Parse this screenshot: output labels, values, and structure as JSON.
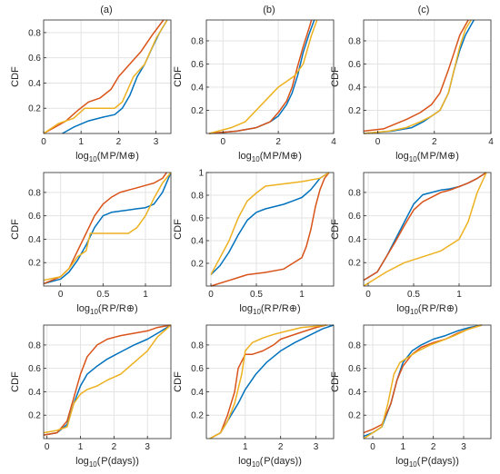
{
  "figure": {
    "column_titles": [
      "(a)",
      "(b)",
      "(c)"
    ],
    "series_colors": [
      "#0072BD",
      "#D95319",
      "#EDB120"
    ]
  },
  "chart_data": [
    {
      "type": "line",
      "panel": "a-mass",
      "ylabel": "CDF",
      "xlabel": "log10(MP/M⊕)",
      "xlim": [
        0,
        3.4
      ],
      "ylim": [
        0,
        0.9
      ],
      "grid": true,
      "xticks": [
        0,
        1,
        2,
        3
      ],
      "yticks": [
        0.2,
        0.4,
        0.6,
        0.8
      ],
      "xtick_labels": [
        "0",
        "1",
        "2",
        "3"
      ],
      "ytick_labels": [
        "0.2",
        "0.4",
        "0.6",
        "0.8"
      ],
      "series": [
        {
          "color": "#0072BD",
          "x": [
            0.5,
            0.8,
            1.2,
            1.6,
            1.9,
            2.1,
            2.3,
            2.5,
            2.7,
            2.9,
            3.1,
            3.3
          ],
          "y": [
            0.0,
            0.05,
            0.1,
            0.13,
            0.15,
            0.2,
            0.3,
            0.45,
            0.55,
            0.68,
            0.8,
            0.9
          ]
        },
        {
          "color": "#D95319",
          "x": [
            0.0,
            0.3,
            0.6,
            0.9,
            1.2,
            1.5,
            1.8,
            2.0,
            2.3,
            2.6,
            2.9,
            3.2
          ],
          "y": [
            0.0,
            0.05,
            0.1,
            0.18,
            0.25,
            0.28,
            0.35,
            0.45,
            0.55,
            0.65,
            0.78,
            0.9
          ]
        },
        {
          "color": "#EDB120",
          "x": [
            0.0,
            0.4,
            0.8,
            1.1,
            1.5,
            1.9,
            2.1,
            2.4,
            2.7,
            3.0,
            3.3
          ],
          "y": [
            0.0,
            0.08,
            0.12,
            0.2,
            0.2,
            0.2,
            0.25,
            0.45,
            0.55,
            0.75,
            0.9
          ]
        }
      ]
    },
    {
      "type": "line",
      "panel": "b-mass",
      "ylabel": "CDF",
      "xlabel": "log10(MP/M⊕)",
      "xlim": [
        -0.6,
        4.0
      ],
      "ylim": [
        0,
        0.98
      ],
      "grid": true,
      "xticks": [
        0,
        2,
        4
      ],
      "yticks": [
        0.2,
        0.4,
        0.6,
        0.8
      ],
      "xtick_labels": [
        "0",
        "2",
        "4"
      ],
      "ytick_labels": [
        "0.2",
        "0.4",
        "0.6",
        "0.8"
      ],
      "series": [
        {
          "color": "#0072BD",
          "x": [
            -0.5,
            0.5,
            1.2,
            1.7,
            2.0,
            2.3,
            2.5,
            2.7,
            2.9,
            3.1,
            3.3
          ],
          "y": [
            0.0,
            0.02,
            0.05,
            0.1,
            0.15,
            0.25,
            0.35,
            0.5,
            0.7,
            0.85,
            0.98
          ]
        },
        {
          "color": "#D95319",
          "x": [
            -0.5,
            0.5,
            1.2,
            1.7,
            2.0,
            2.3,
            2.5,
            2.7,
            2.9,
            3.1,
            3.2
          ],
          "y": [
            0.0,
            0.02,
            0.05,
            0.1,
            0.18,
            0.28,
            0.4,
            0.58,
            0.75,
            0.9,
            0.98
          ]
        },
        {
          "color": "#EDB120",
          "x": [
            -0.5,
            0.3,
            0.8,
            1.2,
            1.6,
            2.0,
            2.3,
            2.6,
            2.9,
            3.2,
            3.4
          ],
          "y": [
            0.0,
            0.05,
            0.1,
            0.2,
            0.3,
            0.4,
            0.45,
            0.5,
            0.6,
            0.85,
            0.98
          ]
        }
      ]
    },
    {
      "type": "line",
      "panel": "c-mass",
      "ylabel": "CDF",
      "xlabel": "log10(MP/M⊕)",
      "xlim": [
        -0.5,
        4.0
      ],
      "ylim": [
        0,
        0.98
      ],
      "grid": true,
      "xticks": [
        0,
        2,
        4
      ],
      "yticks": [
        0.2,
        0.4,
        0.6,
        0.8
      ],
      "xtick_labels": [
        "0",
        "2",
        "4"
      ],
      "ytick_labels": [
        "0.2",
        "0.4",
        "0.6",
        "0.8"
      ],
      "series": [
        {
          "color": "#0072BD",
          "x": [
            -0.5,
            0.5,
            1.2,
            1.6,
            1.9,
            2.2,
            2.5,
            2.7,
            2.9,
            3.1,
            3.4
          ],
          "y": [
            0.0,
            0.02,
            0.05,
            0.1,
            0.15,
            0.2,
            0.35,
            0.55,
            0.72,
            0.85,
            0.98
          ]
        },
        {
          "color": "#D95319",
          "x": [
            -0.5,
            0.2,
            0.6,
            1.0,
            1.5,
            1.9,
            2.2,
            2.5,
            2.7,
            2.9,
            3.2
          ],
          "y": [
            0.02,
            0.04,
            0.08,
            0.12,
            0.18,
            0.25,
            0.35,
            0.55,
            0.7,
            0.85,
            0.98
          ]
        },
        {
          "color": "#EDB120",
          "x": [
            -0.5,
            0.4,
            1.0,
            1.5,
            1.9,
            2.2,
            2.5,
            2.7,
            2.9,
            3.1,
            3.3
          ],
          "y": [
            0.0,
            0.02,
            0.05,
            0.1,
            0.15,
            0.2,
            0.35,
            0.55,
            0.75,
            0.9,
            0.98
          ]
        }
      ]
    },
    {
      "type": "line",
      "panel": "a-radius",
      "ylabel": "CDF",
      "xlabel": "log10(RP/R⊕)",
      "xlim": [
        -0.2,
        1.3
      ],
      "ylim": [
        0,
        0.97
      ],
      "grid": true,
      "xticks": [
        0,
        0.5,
        1
      ],
      "yticks": [
        0.2,
        0.4,
        0.6,
        0.8
      ],
      "xtick_labels": [
        "0",
        "0.5",
        "1"
      ],
      "ytick_labels": [
        "0.2",
        "0.4",
        "0.6",
        "0.8"
      ],
      "series": [
        {
          "color": "#0072BD",
          "x": [
            -0.2,
            0.0,
            0.1,
            0.2,
            0.3,
            0.4,
            0.5,
            0.6,
            0.7,
            0.8,
            0.9,
            1.0,
            1.1,
            1.2,
            1.3
          ],
          "y": [
            0.02,
            0.06,
            0.12,
            0.22,
            0.35,
            0.5,
            0.6,
            0.63,
            0.64,
            0.65,
            0.66,
            0.67,
            0.7,
            0.8,
            0.97
          ]
        },
        {
          "color": "#D95319",
          "x": [
            -0.2,
            0.0,
            0.1,
            0.2,
            0.3,
            0.4,
            0.5,
            0.6,
            0.7,
            0.8,
            0.9,
            1.0,
            1.1,
            1.2,
            1.25
          ],
          "y": [
            0.02,
            0.08,
            0.15,
            0.3,
            0.45,
            0.6,
            0.7,
            0.76,
            0.8,
            0.82,
            0.84,
            0.86,
            0.88,
            0.92,
            0.97
          ]
        },
        {
          "color": "#EDB120",
          "x": [
            -0.2,
            0.0,
            0.1,
            0.2,
            0.3,
            0.35,
            0.6,
            0.8,
            0.9,
            1.0,
            1.1,
            1.2,
            1.3
          ],
          "y": [
            0.05,
            0.08,
            0.15,
            0.25,
            0.3,
            0.45,
            0.45,
            0.45,
            0.5,
            0.6,
            0.75,
            0.88,
            0.97
          ]
        }
      ]
    },
    {
      "type": "line",
      "panel": "b-radius",
      "ylabel": "CDF",
      "xlabel": "log10(RP/R⊕)",
      "xlim": [
        -0.05,
        1.35
      ],
      "ylim": [
        0,
        1.0
      ],
      "grid": true,
      "xticks": [
        0,
        0.5,
        1
      ],
      "yticks": [
        0.2,
        0.4,
        0.6,
        0.8,
        1.0
      ],
      "xtick_labels": [
        "0",
        "0.5",
        "1"
      ],
      "ytick_labels": [
        "0.2",
        "0.4",
        "0.6",
        "0.8",
        "1"
      ],
      "series": [
        {
          "color": "#0072BD",
          "x": [
            0.0,
            0.1,
            0.2,
            0.3,
            0.4,
            0.5,
            0.6,
            0.7,
            0.8,
            0.9,
            1.0,
            1.1,
            1.2,
            1.3
          ],
          "y": [
            0.1,
            0.18,
            0.3,
            0.45,
            0.58,
            0.65,
            0.68,
            0.7,
            0.72,
            0.75,
            0.78,
            0.85,
            0.95,
            1.0
          ]
        },
        {
          "color": "#D95319",
          "x": [
            0.0,
            0.2,
            0.4,
            0.6,
            0.8,
            0.9,
            1.0,
            1.05,
            1.1,
            1.15,
            1.2,
            1.25,
            1.3
          ],
          "y": [
            0.0,
            0.05,
            0.1,
            0.12,
            0.15,
            0.2,
            0.25,
            0.35,
            0.5,
            0.7,
            0.85,
            0.95,
            1.0
          ]
        },
        {
          "color": "#EDB120",
          "x": [
            0.0,
            0.1,
            0.2,
            0.3,
            0.4,
            0.5,
            0.6,
            0.8,
            1.0,
            1.2,
            1.3
          ],
          "y": [
            0.1,
            0.25,
            0.4,
            0.6,
            0.75,
            0.82,
            0.88,
            0.9,
            0.92,
            0.95,
            1.0
          ]
        }
      ]
    },
    {
      "type": "line",
      "panel": "c-radius",
      "ylabel": "CDF",
      "xlabel": "log10(RP/R⊕)",
      "xlim": [
        -0.05,
        1.35
      ],
      "ylim": [
        0,
        0.97
      ],
      "grid": true,
      "xticks": [
        0,
        0.5,
        1
      ],
      "yticks": [
        0.2,
        0.4,
        0.6,
        0.8
      ],
      "xtick_labels": [
        "0",
        "0.5",
        "1"
      ],
      "ytick_labels": [
        "0.2",
        "0.4",
        "0.6",
        "0.8"
      ],
      "series": [
        {
          "color": "#0072BD",
          "x": [
            -0.05,
            0.1,
            0.2,
            0.3,
            0.4,
            0.5,
            0.6,
            0.7,
            0.8,
            0.9,
            1.0,
            1.1,
            1.2,
            1.3
          ],
          "y": [
            0.05,
            0.12,
            0.25,
            0.4,
            0.55,
            0.7,
            0.78,
            0.8,
            0.82,
            0.83,
            0.85,
            0.88,
            0.92,
            0.97
          ]
        },
        {
          "color": "#D95319",
          "x": [
            -0.05,
            0.1,
            0.2,
            0.3,
            0.4,
            0.5,
            0.6,
            0.7,
            0.8,
            0.9,
            1.0,
            1.1,
            1.2,
            1.3
          ],
          "y": [
            0.05,
            0.12,
            0.25,
            0.38,
            0.52,
            0.65,
            0.72,
            0.76,
            0.8,
            0.82,
            0.85,
            0.88,
            0.92,
            0.97
          ]
        },
        {
          "color": "#EDB120",
          "x": [
            -0.05,
            0.2,
            0.4,
            0.6,
            0.8,
            0.9,
            1.0,
            1.1,
            1.2,
            1.3
          ],
          "y": [
            0.0,
            0.12,
            0.2,
            0.25,
            0.3,
            0.35,
            0.4,
            0.55,
            0.8,
            0.97
          ]
        }
      ]
    },
    {
      "type": "line",
      "panel": "a-period",
      "ylabel": "CDF",
      "xlabel": "log10(P(days))",
      "xlim": [
        -0.1,
        3.7
      ],
      "ylim": [
        0,
        0.97
      ],
      "grid": true,
      "xticks": [
        0,
        1,
        2,
        3
      ],
      "yticks": [
        0.2,
        0.4,
        0.6,
        0.8
      ],
      "xtick_labels": [
        "0",
        "1",
        "2",
        "3"
      ],
      "ytick_labels": [
        "0.2",
        "0.4",
        "0.6",
        "0.8"
      ],
      "series": [
        {
          "color": "#0072BD",
          "x": [
            -0.1,
            0.3,
            0.6,
            0.8,
            1.0,
            1.2,
            1.5,
            1.8,
            2.2,
            2.6,
            3.0,
            3.3,
            3.7
          ],
          "y": [
            0.03,
            0.05,
            0.12,
            0.3,
            0.45,
            0.55,
            0.62,
            0.68,
            0.74,
            0.8,
            0.85,
            0.9,
            0.97
          ]
        },
        {
          "color": "#D95319",
          "x": [
            -0.1,
            0.3,
            0.6,
            0.8,
            1.0,
            1.2,
            1.5,
            1.8,
            2.2,
            2.6,
            3.0,
            3.3,
            3.7
          ],
          "y": [
            0.03,
            0.05,
            0.15,
            0.35,
            0.55,
            0.7,
            0.8,
            0.85,
            0.88,
            0.9,
            0.92,
            0.95,
            0.97
          ]
        },
        {
          "color": "#EDB120",
          "x": [
            -0.1,
            0.3,
            0.6,
            0.8,
            1.0,
            1.2,
            1.5,
            1.8,
            2.2,
            2.6,
            3.0,
            3.3,
            3.7
          ],
          "y": [
            0.05,
            0.07,
            0.1,
            0.3,
            0.38,
            0.42,
            0.45,
            0.5,
            0.55,
            0.65,
            0.75,
            0.87,
            0.97
          ]
        }
      ]
    },
    {
      "type": "line",
      "panel": "b-period",
      "ylabel": "CDF",
      "xlabel": "log10(P(days))",
      "xlim": [
        -0.1,
        3.5
      ],
      "ylim": [
        0,
        0.97
      ],
      "grid": true,
      "xticks": [
        1,
        2,
        3
      ],
      "yticks": [
        0.2,
        0.4,
        0.6,
        0.8
      ],
      "xtick_labels": [
        "1",
        "2",
        "3"
      ],
      "ytick_labels": [
        "0.2",
        "0.4",
        "0.6",
        "0.8"
      ],
      "series": [
        {
          "color": "#0072BD",
          "x": [
            0.0,
            0.3,
            0.5,
            0.8,
            1.0,
            1.3,
            1.6,
            2.0,
            2.4,
            2.8,
            3.2,
            3.5
          ],
          "y": [
            0.0,
            0.05,
            0.15,
            0.3,
            0.42,
            0.55,
            0.65,
            0.75,
            0.82,
            0.88,
            0.94,
            0.97
          ]
        },
        {
          "color": "#D95319",
          "x": [
            0.0,
            0.3,
            0.5,
            0.7,
            0.8,
            1.0,
            1.2,
            1.5,
            1.8,
            2.0,
            2.5,
            3.0,
            3.3
          ],
          "y": [
            0.0,
            0.05,
            0.2,
            0.4,
            0.6,
            0.72,
            0.72,
            0.75,
            0.8,
            0.85,
            0.9,
            0.95,
            0.97
          ]
        },
        {
          "color": "#EDB120",
          "x": [
            0.0,
            0.3,
            0.5,
            0.7,
            0.9,
            1.0,
            1.2,
            1.5,
            1.8,
            2.2,
            2.6,
            3.0,
            3.3
          ],
          "y": [
            0.0,
            0.05,
            0.15,
            0.3,
            0.55,
            0.75,
            0.82,
            0.86,
            0.89,
            0.92,
            0.95,
            0.96,
            0.97
          ]
        }
      ]
    },
    {
      "type": "line",
      "panel": "c-period",
      "ylabel": "CDF",
      "xlabel": "log10(P(days))",
      "xlim": [
        -0.3,
        3.9
      ],
      "ylim": [
        0,
        0.97
      ],
      "grid": true,
      "xticks": [
        0,
        1,
        2,
        3
      ],
      "yticks": [
        0.2,
        0.4,
        0.6,
        0.8
      ],
      "xtick_labels": [
        "0",
        "1",
        "2",
        "3"
      ],
      "ytick_labels": [
        "0.2",
        "0.4",
        "0.6",
        "0.8"
      ],
      "series": [
        {
          "color": "#0072BD",
          "x": [
            -0.3,
            0.0,
            0.3,
            0.6,
            0.8,
            1.0,
            1.3,
            1.6,
            2.0,
            2.4,
            2.8,
            3.2,
            3.6
          ],
          "y": [
            0.02,
            0.05,
            0.1,
            0.3,
            0.5,
            0.65,
            0.75,
            0.8,
            0.85,
            0.88,
            0.92,
            0.95,
            0.97
          ]
        },
        {
          "color": "#D95319",
          "x": [
            -0.3,
            0.0,
            0.3,
            0.6,
            0.8,
            1.0,
            1.3,
            1.6,
            2.0,
            2.4,
            2.8,
            3.2,
            3.6
          ],
          "y": [
            0.05,
            0.08,
            0.12,
            0.3,
            0.5,
            0.62,
            0.72,
            0.78,
            0.82,
            0.85,
            0.9,
            0.94,
            0.97
          ]
        },
        {
          "color": "#EDB120",
          "x": [
            -0.3,
            0.0,
            0.3,
            0.5,
            0.7,
            0.9,
            1.2,
            1.5,
            1.9,
            2.3,
            2.7,
            3.1,
            3.6
          ],
          "y": [
            0.0,
            0.05,
            0.1,
            0.3,
            0.55,
            0.65,
            0.7,
            0.75,
            0.8,
            0.84,
            0.88,
            0.93,
            0.97
          ]
        }
      ]
    }
  ]
}
